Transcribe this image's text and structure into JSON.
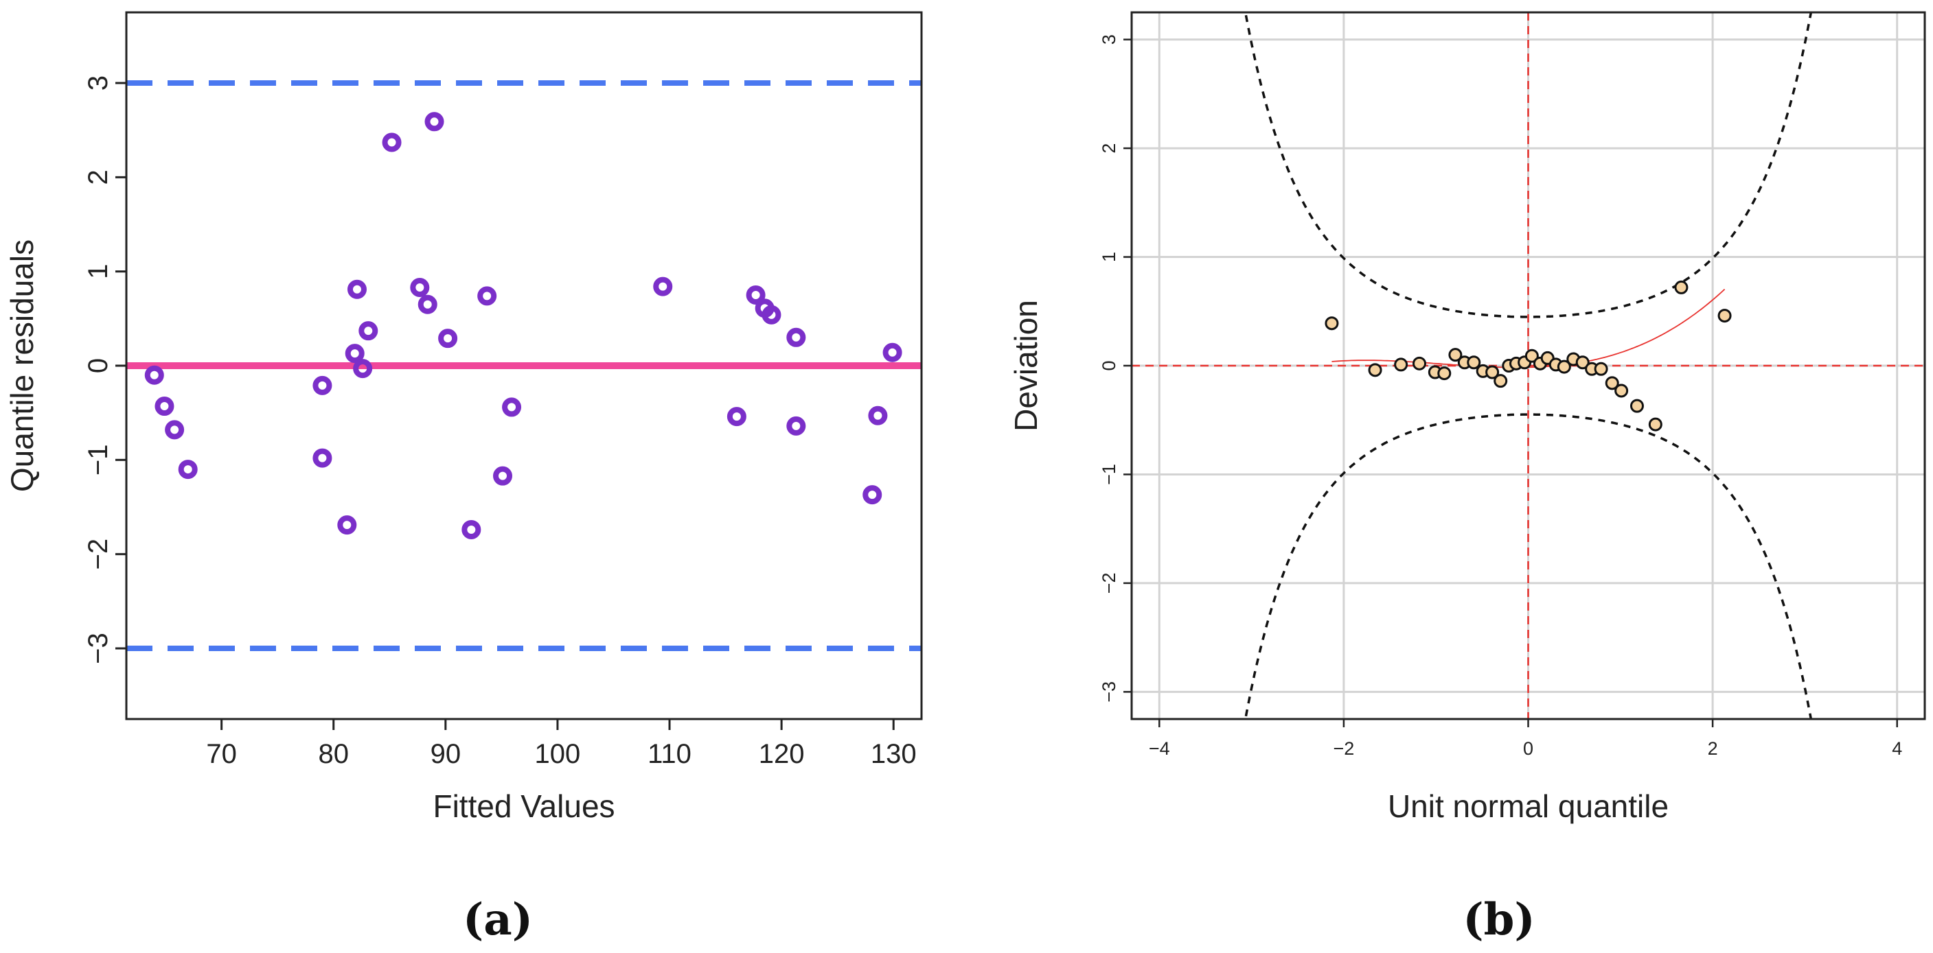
{
  "colors": {
    "residual_point": "#7b2fc9",
    "zero_line": "#f0479a",
    "bound_line": "#4a78f0",
    "worm_point_fill": "#f5d3a1",
    "worm_point_edge": "#111111",
    "worm_curve": "#e8322e",
    "confidence_band": "#111111",
    "reference_line": "#e8322e",
    "grid": "#d3d3d3"
  },
  "chart_data": [
    {
      "type": "scatter",
      "panel_label": "(a)",
      "xlabel": "Fitted Values",
      "ylabel": "Quantile residuals",
      "xlim": [
        61.5,
        132.5
      ],
      "ylim": [
        -3.75,
        3.75
      ],
      "x_ticks": [
        70,
        80,
        90,
        100,
        110,
        120,
        130
      ],
      "y_ticks": [
        -3,
        -2,
        -1,
        0,
        1,
        2,
        3
      ],
      "tick_labels_x": [
        "70",
        "80",
        "90",
        "100",
        "110",
        "120",
        "130"
      ],
      "tick_labels_y": [
        "−3",
        "−2",
        "−1",
        "0",
        "1",
        "2",
        "3"
      ],
      "hlines": [
        {
          "name": "zero-line",
          "y": 0,
          "style": "solid"
        },
        {
          "name": "upper-bound-line",
          "y": 3,
          "style": "dashed"
        },
        {
          "name": "lower-bound-line",
          "y": -3,
          "style": "dashed"
        }
      ],
      "points": [
        {
          "x": 64.0,
          "y": -0.1
        },
        {
          "x": 64.9,
          "y": -0.43
        },
        {
          "x": 65.8,
          "y": -0.68
        },
        {
          "x": 67.0,
          "y": -1.1
        },
        {
          "x": 79.0,
          "y": -0.21
        },
        {
          "x": 79.0,
          "y": -0.98
        },
        {
          "x": 81.2,
          "y": -1.69
        },
        {
          "x": 81.9,
          "y": 0.13
        },
        {
          "x": 82.1,
          "y": 0.81
        },
        {
          "x": 82.6,
          "y": -0.03
        },
        {
          "x": 83.1,
          "y": 0.37
        },
        {
          "x": 85.2,
          "y": 2.37
        },
        {
          "x": 87.7,
          "y": 0.83
        },
        {
          "x": 88.4,
          "y": 0.65
        },
        {
          "x": 89.0,
          "y": 2.59
        },
        {
          "x": 90.2,
          "y": 0.29
        },
        {
          "x": 92.3,
          "y": -1.74
        },
        {
          "x": 93.7,
          "y": 0.74
        },
        {
          "x": 95.1,
          "y": -1.17
        },
        {
          "x": 95.9,
          "y": -0.44
        },
        {
          "x": 109.4,
          "y": 0.84
        },
        {
          "x": 116.0,
          "y": -0.54
        },
        {
          "x": 117.7,
          "y": 0.75
        },
        {
          "x": 118.5,
          "y": 0.61
        },
        {
          "x": 119.1,
          "y": 0.54
        },
        {
          "x": 121.3,
          "y": 0.3
        },
        {
          "x": 121.3,
          "y": -0.64
        },
        {
          "x": 128.1,
          "y": -1.37
        },
        {
          "x": 128.6,
          "y": -0.53
        },
        {
          "x": 129.9,
          "y": 0.14
        }
      ]
    },
    {
      "type": "scatter",
      "panel_label": "(b)",
      "xlabel": "Unit normal quantile",
      "ylabel": "Deviation",
      "xlim": [
        -4.3,
        4.3
      ],
      "ylim": [
        -3.25,
        3.25
      ],
      "x_ticks": [
        -4,
        -2,
        0,
        2,
        4
      ],
      "y_ticks": [
        -3,
        -2,
        -1,
        0,
        1,
        2,
        3
      ],
      "tick_labels_x": [
        "−4",
        "−2",
        "0",
        "2",
        "4"
      ],
      "tick_labels_y": [
        "−3",
        "−2",
        "−1",
        "0",
        "1",
        "2",
        "3"
      ],
      "grid": true,
      "reference_lines": {
        "x": 0,
        "y": 0,
        "style": "dashed"
      },
      "confidence_band": {
        "n": 30,
        "level": 0.95,
        "style": "dashed"
      },
      "fitted_curve": {
        "x_range": [
          -2.13,
          2.13
        ],
        "coefficients": [
          -0.015,
          0.02,
          0.085,
          0.03
        ]
      },
      "points": [
        {
          "x": -2.13,
          "y": 0.39
        },
        {
          "x": -1.66,
          "y": -0.04
        },
        {
          "x": -1.38,
          "y": 0.01
        },
        {
          "x": -1.18,
          "y": 0.02
        },
        {
          "x": -1.01,
          "y": -0.06
        },
        {
          "x": -0.91,
          "y": -0.07
        },
        {
          "x": -0.79,
          "y": 0.1
        },
        {
          "x": -0.69,
          "y": 0.03
        },
        {
          "x": -0.59,
          "y": 0.03
        },
        {
          "x": -0.49,
          "y": -0.05
        },
        {
          "x": -0.39,
          "y": -0.06
        },
        {
          "x": -0.3,
          "y": -0.14
        },
        {
          "x": -0.21,
          "y": 0.0
        },
        {
          "x": -0.13,
          "y": 0.02
        },
        {
          "x": -0.04,
          "y": 0.03
        },
        {
          "x": 0.04,
          "y": 0.09
        },
        {
          "x": 0.13,
          "y": 0.02
        },
        {
          "x": 0.21,
          "y": 0.07
        },
        {
          "x": 0.3,
          "y": 0.01
        },
        {
          "x": 0.39,
          "y": -0.01
        },
        {
          "x": 0.49,
          "y": 0.06
        },
        {
          "x": 0.59,
          "y": 0.03
        },
        {
          "x": 0.69,
          "y": -0.03
        },
        {
          "x": 0.79,
          "y": -0.03
        },
        {
          "x": 0.91,
          "y": -0.16
        },
        {
          "x": 1.01,
          "y": -0.23
        },
        {
          "x": 1.18,
          "y": -0.37
        },
        {
          "x": 1.38,
          "y": -0.54
        },
        {
          "x": 1.66,
          "y": 0.72
        },
        {
          "x": 2.13,
          "y": 0.46
        }
      ]
    }
  ]
}
